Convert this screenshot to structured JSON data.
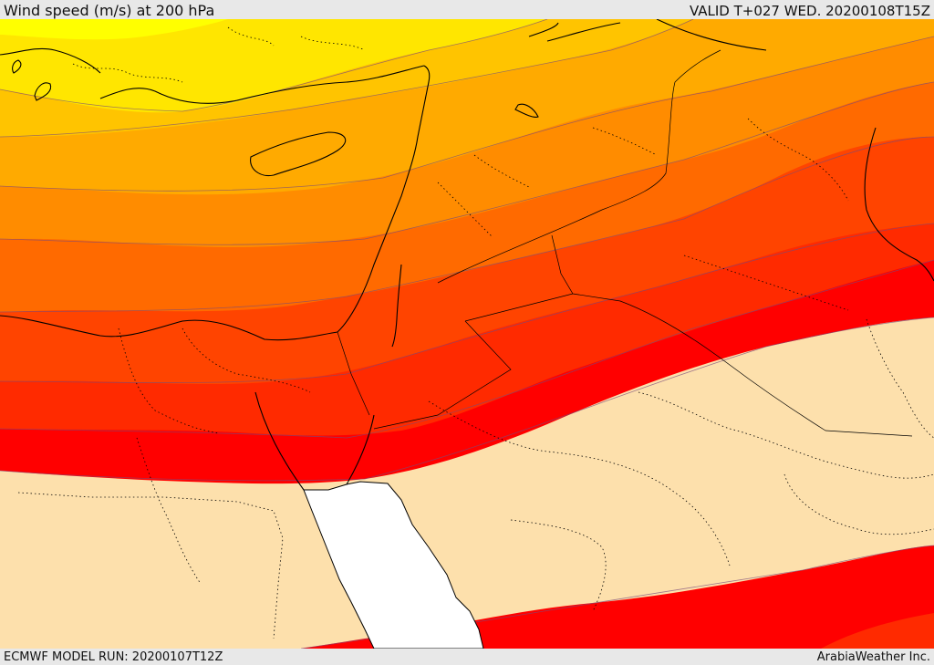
{
  "header": {
    "title": "Wind speed (m/s) at 200 hPa",
    "valid_time": "VALID T+027 WED. 20200108T15Z"
  },
  "footer": {
    "model_run": "ECMWF MODEL RUN: 20200107T12Z",
    "credit": "ArabiaWeather Inc."
  },
  "colors": {
    "band_yellow": "#ffe600",
    "band_gold": "#ffc400",
    "band_amber": "#ffaa00",
    "band_orange": "#ff8c00",
    "band_deep_orange": "#ff6a00",
    "band_red_orange": "#ff4400",
    "band_red": "#ff2a00",
    "band_pure_red": "#ff0000",
    "low_wind": "#fde0ac",
    "sea": "#ffffff"
  }
}
